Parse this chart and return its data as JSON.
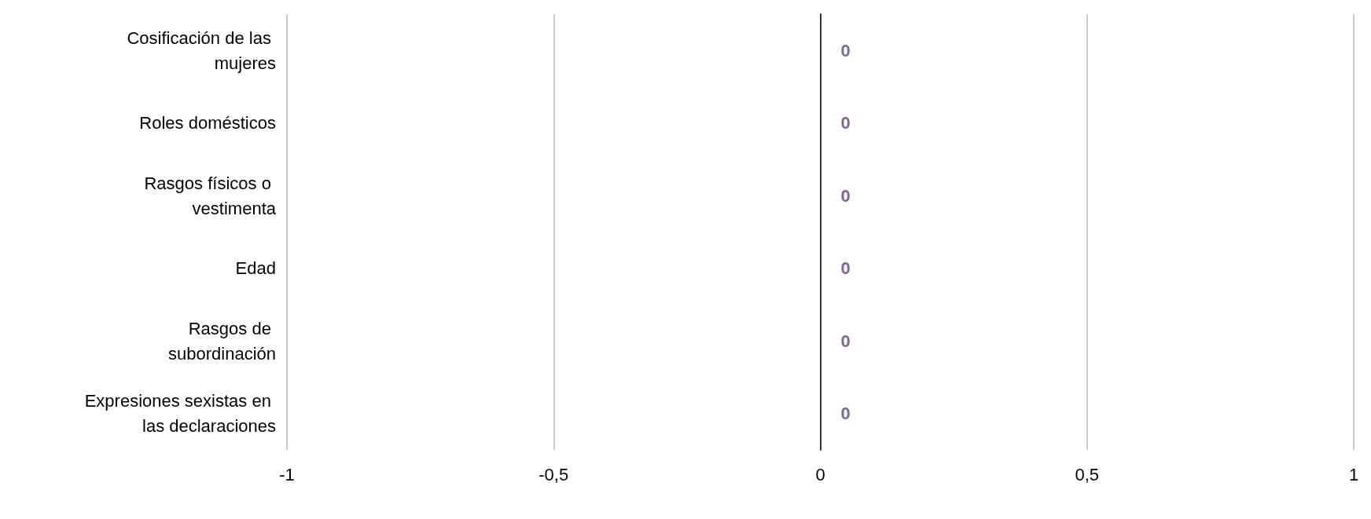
{
  "chart_data": {
    "type": "bar",
    "orientation": "horizontal",
    "categories": [
      "Cosificación de las mujeres",
      "Roles domésticos",
      "Rasgos físicos o vestimenta",
      "Edad",
      "Rasgos de subordinación",
      "Expresiones sexistas en las declaraciones"
    ],
    "values": [
      0,
      0,
      0,
      0,
      0,
      0
    ],
    "color": "#8064a2",
    "data_labels": true,
    "xlim": [
      -1,
      1
    ],
    "xticks": [
      -1,
      {
        "value": -0.5,
        "label": "-0,5"
      },
      0,
      {
        "value": 0.5,
        "label": "0,5"
      },
      1
    ],
    "grid": "x"
  }
}
